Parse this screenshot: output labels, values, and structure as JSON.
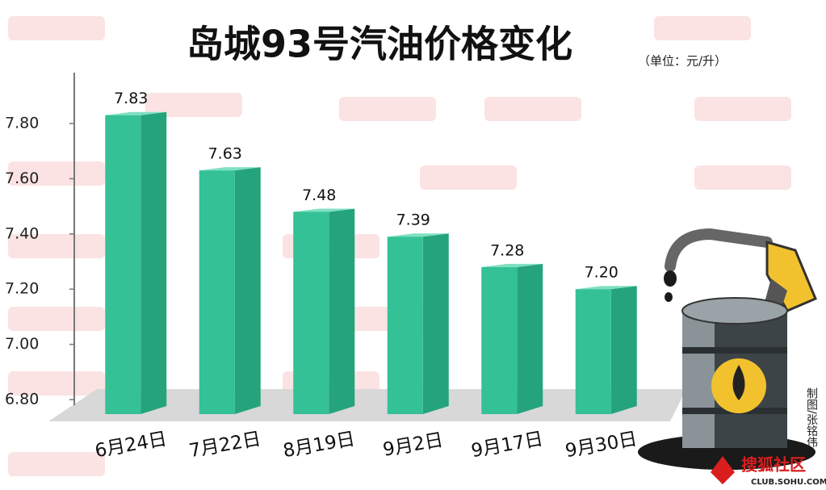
{
  "chart_data": {
    "type": "bar",
    "title": "岛城93号汽油价格变化",
    "subtitle": "（单位：元/升）",
    "categories": [
      "6月24日",
      "7月22日",
      "8月19日",
      "9月2日",
      "9月17日",
      "9月30日"
    ],
    "values": [
      7.83,
      7.63,
      7.48,
      7.39,
      7.28,
      7.2
    ],
    "value_labels": [
      "7.83",
      "7.63",
      "7.48",
      "7.39",
      "7.28",
      "7.20"
    ],
    "color": "#34c196",
    "ylim": [
      6.8,
      7.98
    ],
    "yticks": [
      {
        "value": 6.8,
        "label": "6.80"
      },
      {
        "value": 7.0,
        "label": "7.00"
      },
      {
        "value": 7.2,
        "label": "7.20"
      },
      {
        "value": 7.4,
        "label": "7.40"
      },
      {
        "value": 7.6,
        "label": "7.60"
      },
      {
        "value": 7.8,
        "label": "7.80"
      }
    ],
    "grid": false,
    "credit": "制图/张铭伟",
    "logo": "搜狐社区",
    "logo_url": "CLUB.SOHU.COM"
  }
}
